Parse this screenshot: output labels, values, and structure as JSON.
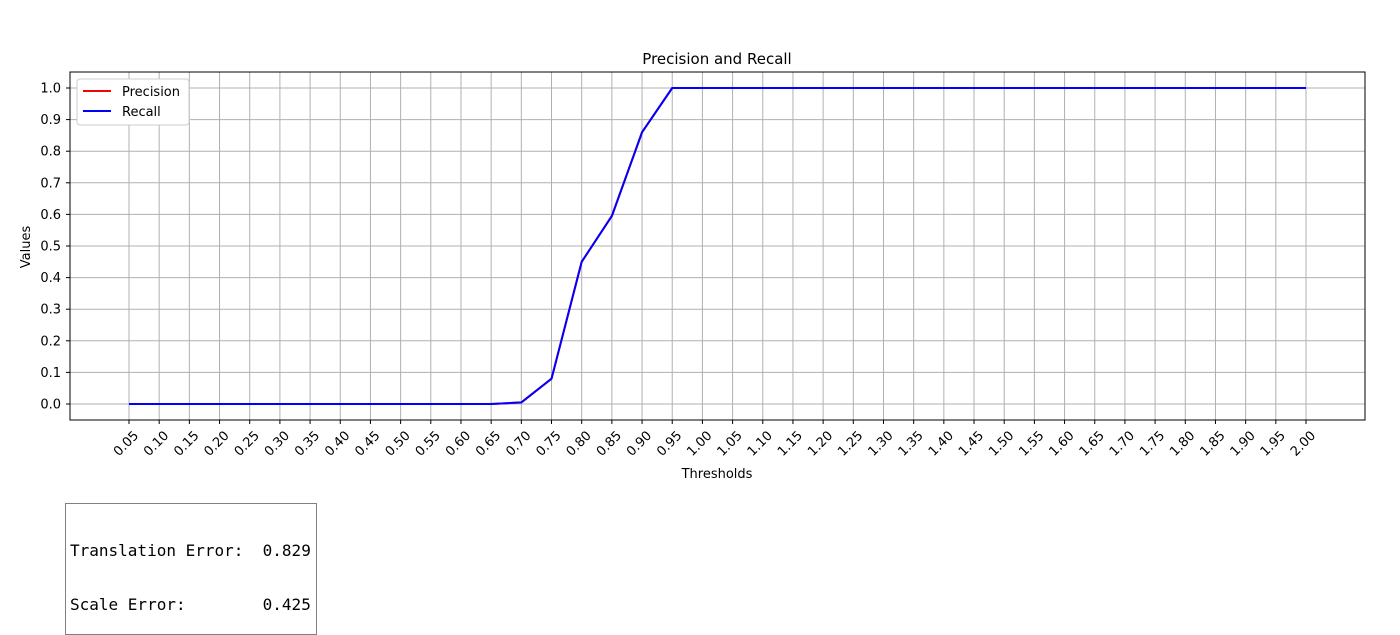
{
  "chart_data": {
    "type": "line",
    "title": "Precision and Recall",
    "xlabel": "Thresholds",
    "ylabel": "Values",
    "x": [
      "0.05",
      "0.10",
      "0.15",
      "0.20",
      "0.25",
      "0.30",
      "0.35",
      "0.40",
      "0.45",
      "0.50",
      "0.55",
      "0.60",
      "0.65",
      "0.70",
      "0.75",
      "0.80",
      "0.85",
      "0.90",
      "0.95",
      "1.00",
      "1.05",
      "1.10",
      "1.15",
      "1.20",
      "1.25",
      "1.30",
      "1.35",
      "1.40",
      "1.45",
      "1.50",
      "1.55",
      "1.60",
      "1.65",
      "1.70",
      "1.75",
      "1.80",
      "1.85",
      "1.90",
      "1.95",
      "2.00"
    ],
    "ylim": [
      0.0,
      1.0
    ],
    "yticks": [
      "0.0",
      "0.1",
      "0.2",
      "0.3",
      "0.4",
      "0.5",
      "0.6",
      "0.7",
      "0.8",
      "0.9",
      "1.0"
    ],
    "grid": true,
    "legend_position": "top-left",
    "series": [
      {
        "name": "Precision",
        "color": "#ff0000",
        "values": [
          0,
          0,
          0,
          0,
          0,
          0,
          0,
          0,
          0,
          0,
          0,
          0,
          0,
          0.005,
          0.08,
          0.45,
          0.595,
          0.86,
          1,
          1,
          1,
          1,
          1,
          1,
          1,
          1,
          1,
          1,
          1,
          1,
          1,
          1,
          1,
          1,
          1,
          1,
          1,
          1,
          1,
          1
        ]
      },
      {
        "name": "Recall",
        "color": "#0000ff",
        "values": [
          0,
          0,
          0,
          0,
          0,
          0,
          0,
          0,
          0,
          0,
          0,
          0,
          0,
          0.005,
          0.08,
          0.45,
          0.595,
          0.86,
          1,
          1,
          1,
          1,
          1,
          1,
          1,
          1,
          1,
          1,
          1,
          1,
          1,
          1,
          1,
          1,
          1,
          1,
          1,
          1,
          1,
          1
        ]
      }
    ]
  },
  "error_box": {
    "translation_line": "Translation Error:  0.829",
    "scale_line": "Scale Error:        0.425"
  }
}
